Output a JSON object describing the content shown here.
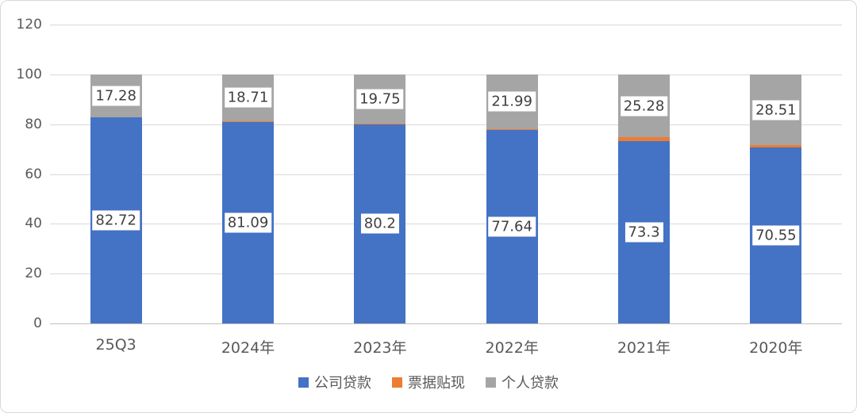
{
  "chart_data": {
    "type": "bar",
    "stacked": true,
    "title": "",
    "xlabel": "",
    "ylabel": "",
    "categories": [
      "25Q3",
      "2024年",
      "2023年",
      "2022年",
      "2021年",
      "2020年"
    ],
    "series": [
      {
        "name": "公司贷款",
        "color": "#4472c4",
        "values": [
          82.72,
          81.09,
          80.2,
          77.64,
          73.3,
          70.55
        ],
        "labels": [
          "82.72",
          "81.09",
          "80.2",
          "77.64",
          "73.3",
          "70.55"
        ]
      },
      {
        "name": "票据贴现",
        "color": "#ed7d31",
        "values": [
          0,
          0.2,
          0.05,
          0.37,
          1.42,
          0.94
        ],
        "labels": null
      },
      {
        "name": "个人贷款",
        "color": "#a5a5a5",
        "values": [
          17.28,
          18.71,
          19.75,
          21.99,
          25.28,
          28.51
        ],
        "labels": [
          "17.28",
          "18.71",
          "19.75",
          "21.99",
          "25.28",
          "28.51"
        ]
      }
    ],
    "ylim": [
      0,
      120
    ],
    "yticks": [
      0,
      20,
      40,
      60,
      80,
      100,
      120
    ],
    "grid": true,
    "legend_position": "bottom",
    "colors": {
      "gridline": "#d9d9d9",
      "tick_text": "#595959",
      "label_text": "#404040",
      "background": "#ffffff"
    }
  }
}
